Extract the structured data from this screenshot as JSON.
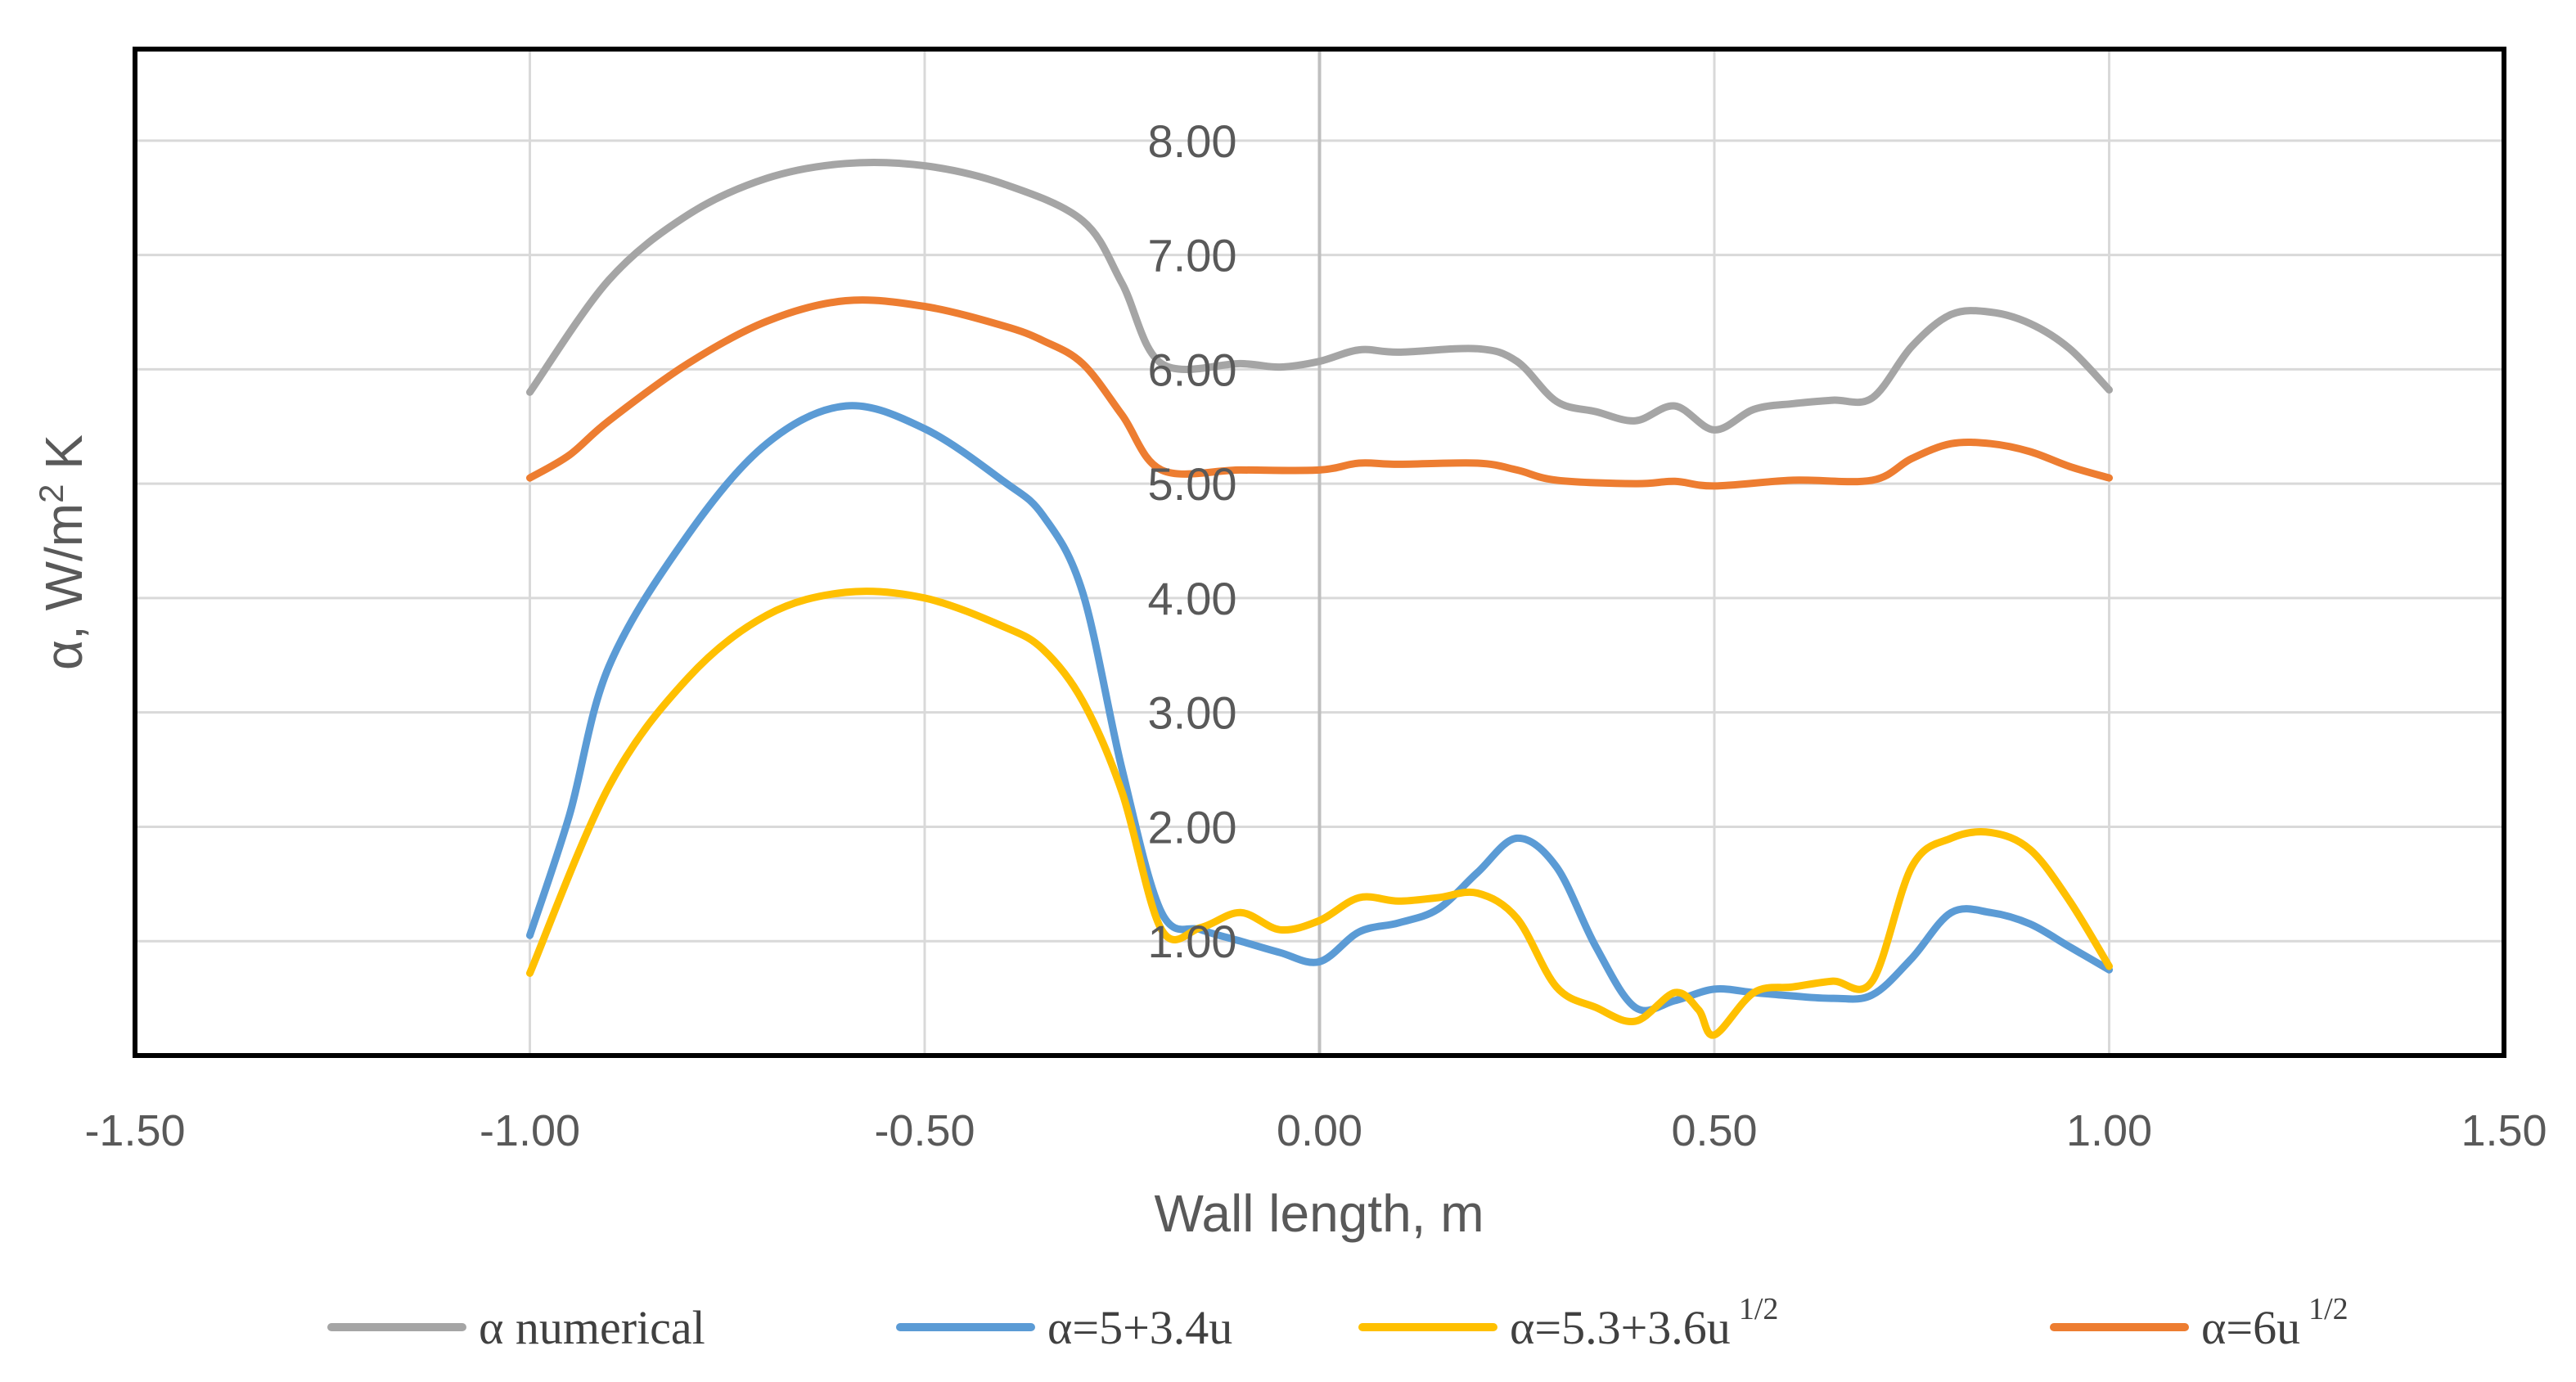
{
  "chart_data": {
    "type": "line",
    "title": "",
    "xlabel": "Wall length, m",
    "ylabel": "α, W/m² K",
    "ylabel_base": "α, W/m",
    "ylabel_sup": "2",
    "ylabel_tail": " K",
    "xlim": [
      -1.5,
      1.5
    ],
    "ylim": [
      0,
      8.8
    ],
    "grid": true,
    "legend_position": "bottom",
    "x_ticks": [
      -1.5,
      -1.0,
      -0.5,
      0.0,
      0.5,
      1.0,
      1.5
    ],
    "x_tick_labels": [
      "-1.50",
      "-1.00",
      "-0.50",
      "0.00",
      "0.50",
      "1.00",
      "1.50"
    ],
    "y_ticks": [
      1,
      2,
      3,
      4,
      5,
      6,
      7,
      8
    ],
    "y_tick_labels": [
      "1.00",
      "2.00",
      "3.00",
      "4.00",
      "5.00",
      "6.00",
      "7.00",
      "8.00"
    ],
    "series": [
      {
        "name": "α  numerical",
        "legend_main": "α  numerical",
        "legend_sup": "",
        "color": "#A5A5A5",
        "points": [
          [
            -1.0,
            5.8
          ],
          [
            -0.9,
            6.78
          ],
          [
            -0.8,
            7.35
          ],
          [
            -0.7,
            7.67
          ],
          [
            -0.6,
            7.8
          ],
          [
            -0.5,
            7.78
          ],
          [
            -0.4,
            7.62
          ],
          [
            -0.3,
            7.3
          ],
          [
            -0.25,
            6.75
          ],
          [
            -0.2,
            6.05
          ],
          [
            -0.1,
            6.05
          ],
          [
            -0.05,
            6.02
          ],
          [
            0.0,
            6.07
          ],
          [
            0.05,
            6.17
          ],
          [
            0.1,
            6.15
          ],
          [
            0.2,
            6.18
          ],
          [
            0.25,
            6.07
          ],
          [
            0.3,
            5.72
          ],
          [
            0.35,
            5.63
          ],
          [
            0.4,
            5.55
          ],
          [
            0.45,
            5.68
          ],
          [
            0.5,
            5.47
          ],
          [
            0.55,
            5.65
          ],
          [
            0.6,
            5.7
          ],
          [
            0.65,
            5.73
          ],
          [
            0.7,
            5.75
          ],
          [
            0.75,
            6.2
          ],
          [
            0.8,
            6.48
          ],
          [
            0.85,
            6.5
          ],
          [
            0.9,
            6.4
          ],
          [
            0.95,
            6.18
          ],
          [
            1.0,
            5.82
          ]
        ]
      },
      {
        "name": "α=5+3.4u",
        "legend_main": "α=5+3.4u",
        "legend_sup": "",
        "color": "#5B9BD5",
        "points": [
          [
            -1.0,
            1.05
          ],
          [
            -0.95,
            2.1
          ],
          [
            -0.9,
            3.4
          ],
          [
            -0.8,
            4.55
          ],
          [
            -0.7,
            5.35
          ],
          [
            -0.6,
            5.68
          ],
          [
            -0.5,
            5.48
          ],
          [
            -0.4,
            5.02
          ],
          [
            -0.35,
            4.72
          ],
          [
            -0.3,
            4.05
          ],
          [
            -0.25,
            2.5
          ],
          [
            -0.2,
            1.25
          ],
          [
            -0.15,
            1.1
          ],
          [
            -0.1,
            1.0
          ],
          [
            -0.05,
            0.9
          ],
          [
            0.0,
            0.82
          ],
          [
            0.05,
            1.08
          ],
          [
            0.1,
            1.16
          ],
          [
            0.15,
            1.28
          ],
          [
            0.2,
            1.6
          ],
          [
            0.25,
            1.9
          ],
          [
            0.3,
            1.65
          ],
          [
            0.35,
            0.95
          ],
          [
            0.4,
            0.42
          ],
          [
            0.45,
            0.48
          ],
          [
            0.5,
            0.58
          ],
          [
            0.55,
            0.55
          ],
          [
            0.6,
            0.52
          ],
          [
            0.65,
            0.5
          ],
          [
            0.7,
            0.53
          ],
          [
            0.75,
            0.85
          ],
          [
            0.8,
            1.25
          ],
          [
            0.85,
            1.25
          ],
          [
            0.9,
            1.15
          ],
          [
            0.95,
            0.95
          ],
          [
            1.0,
            0.75
          ]
        ]
      },
      {
        "name": "α=5.3+3.6u^1/2",
        "legend_main": "α=5.3+3.6u",
        "legend_sup": "1/2",
        "color": "#FFC000",
        "points": [
          [
            -1.0,
            0.72
          ],
          [
            -0.9,
            2.35
          ],
          [
            -0.8,
            3.3
          ],
          [
            -0.7,
            3.85
          ],
          [
            -0.6,
            4.05
          ],
          [
            -0.5,
            4.0
          ],
          [
            -0.4,
            3.75
          ],
          [
            -0.35,
            3.55
          ],
          [
            -0.3,
            3.1
          ],
          [
            -0.25,
            2.3
          ],
          [
            -0.2,
            1.1
          ],
          [
            -0.15,
            1.12
          ],
          [
            -0.1,
            1.25
          ],
          [
            -0.05,
            1.1
          ],
          [
            0.0,
            1.18
          ],
          [
            0.05,
            1.38
          ],
          [
            0.1,
            1.35
          ],
          [
            0.15,
            1.38
          ],
          [
            0.2,
            1.42
          ],
          [
            0.25,
            1.2
          ],
          [
            0.3,
            0.6
          ],
          [
            0.35,
            0.42
          ],
          [
            0.4,
            0.3
          ],
          [
            0.45,
            0.55
          ],
          [
            0.48,
            0.4
          ],
          [
            0.5,
            0.18
          ],
          [
            0.55,
            0.55
          ],
          [
            0.6,
            0.6
          ],
          [
            0.65,
            0.65
          ],
          [
            0.7,
            0.65
          ],
          [
            0.75,
            1.65
          ],
          [
            0.8,
            1.9
          ],
          [
            0.85,
            1.95
          ],
          [
            0.9,
            1.8
          ],
          [
            0.95,
            1.35
          ],
          [
            1.0,
            0.78
          ]
        ]
      },
      {
        "name": "α=6u^1/2",
        "legend_main": "α=6u",
        "legend_sup": "1/2",
        "color": "#ED7D31",
        "points": [
          [
            -1.0,
            5.05
          ],
          [
            -0.95,
            5.25
          ],
          [
            -0.9,
            5.55
          ],
          [
            -0.8,
            6.05
          ],
          [
            -0.7,
            6.42
          ],
          [
            -0.6,
            6.6
          ],
          [
            -0.5,
            6.55
          ],
          [
            -0.4,
            6.38
          ],
          [
            -0.35,
            6.25
          ],
          [
            -0.3,
            6.05
          ],
          [
            -0.25,
            5.6
          ],
          [
            -0.2,
            5.12
          ],
          [
            -0.1,
            5.12
          ],
          [
            0.0,
            5.12
          ],
          [
            0.05,
            5.18
          ],
          [
            0.1,
            5.17
          ],
          [
            0.2,
            5.18
          ],
          [
            0.25,
            5.12
          ],
          [
            0.3,
            5.03
          ],
          [
            0.4,
            5.0
          ],
          [
            0.45,
            5.02
          ],
          [
            0.5,
            4.98
          ],
          [
            0.6,
            5.03
          ],
          [
            0.7,
            5.03
          ],
          [
            0.75,
            5.22
          ],
          [
            0.8,
            5.35
          ],
          [
            0.85,
            5.35
          ],
          [
            0.9,
            5.28
          ],
          [
            0.95,
            5.15
          ],
          [
            1.0,
            5.05
          ]
        ]
      }
    ]
  }
}
